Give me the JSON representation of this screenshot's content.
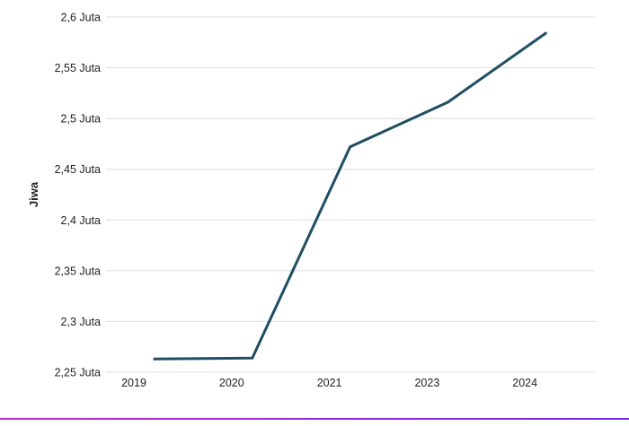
{
  "chart_data": {
    "type": "line",
    "title": "",
    "xlabel": "",
    "ylabel": "Jiwa",
    "categories": [
      "2019",
      "2020",
      "2021",
      "2023",
      "2024"
    ],
    "series": [
      {
        "values": [
          2263000,
          2264000,
          2472000,
          2516000,
          2584000
        ]
      }
    ],
    "ylim": [
      2250000,
      2600000
    ],
    "yticks": [
      2250000,
      2300000,
      2350000,
      2400000,
      2450000,
      2500000,
      2550000,
      2600000
    ],
    "ytick_labels": [
      "2,25 Juta",
      "2,3 Juta",
      "2,35 Juta",
      "2,4 Juta",
      "2,45 Juta",
      "2,5 Juta",
      "2,55 Juta",
      "2,6 Juta"
    ],
    "grid": true,
    "legend": "none"
  },
  "colors": {
    "line": "#1f4e63",
    "grid": "#dcdcdc",
    "bar_start": "#c026d3",
    "bar_end": "#6d28d9"
  }
}
